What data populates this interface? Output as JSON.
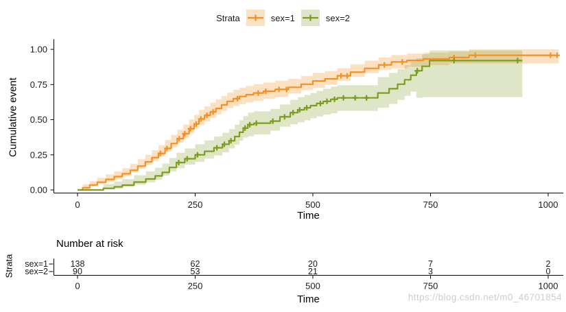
{
  "watermark": {
    "text": "https://blog.csdn.net/m0_46701854",
    "color": "#cdcdcd"
  },
  "chart_data": {
    "type": "line",
    "subtype": "kaplan-meier-cumulative-event-step",
    "title": "",
    "xlabel": "Time",
    "ylabel": "Cumulative event",
    "xlim": [
      0,
      1050
    ],
    "ylim": [
      0,
      1.0
    ],
    "grid": false,
    "x_ticks": {
      "values": [
        0,
        250,
        500,
        750,
        1000
      ],
      "labels": [
        "0",
        "250",
        "500",
        "750",
        "1000"
      ]
    },
    "y_ticks": {
      "values": [
        0,
        0.25,
        0.5,
        0.75,
        1.0
      ],
      "labels": [
        "0.00",
        "0.25",
        "0.50",
        "0.75",
        "1.00"
      ]
    },
    "legend": {
      "title": "Strata",
      "position": "top",
      "entries": [
        {
          "label": "sex=1",
          "color": "#F59122",
          "band_color": "rgba(245,145,35,0.28)"
        },
        {
          "label": "sex=2",
          "color": "#7C9D1E",
          "band_color": "rgba(124,157,30,0.25)"
        }
      ]
    },
    "series": [
      {
        "name": "sex=1",
        "color": "#F59122",
        "band_color": "rgba(245,145,35,0.28)",
        "steps": [
          [
            0,
            0,
            0,
            0.004
          ],
          [
            11,
            0.015,
            0.003,
            0.04
          ],
          [
            26,
            0.035,
            0.012,
            0.062
          ],
          [
            42,
            0.055,
            0.027,
            0.087
          ],
          [
            60,
            0.075,
            0.044,
            0.11
          ],
          [
            78,
            0.095,
            0.06,
            0.132
          ],
          [
            95,
            0.115,
            0.077,
            0.155
          ],
          [
            112,
            0.14,
            0.098,
            0.185
          ],
          [
            128,
            0.17,
            0.124,
            0.218
          ],
          [
            144,
            0.2,
            0.152,
            0.25
          ],
          [
            158,
            0.23,
            0.178,
            0.283
          ],
          [
            172,
            0.26,
            0.205,
            0.318
          ],
          [
            186,
            0.295,
            0.237,
            0.355
          ],
          [
            199,
            0.33,
            0.27,
            0.392
          ],
          [
            212,
            0.365,
            0.303,
            0.429
          ],
          [
            225,
            0.4,
            0.336,
            0.465
          ],
          [
            237,
            0.435,
            0.37,
            0.5
          ],
          [
            248,
            0.47,
            0.404,
            0.535
          ],
          [
            258,
            0.505,
            0.438,
            0.57
          ],
          [
            270,
            0.53,
            0.463,
            0.595
          ],
          [
            282,
            0.555,
            0.488,
            0.62
          ],
          [
            294,
            0.58,
            0.512,
            0.645
          ],
          [
            306,
            0.605,
            0.537,
            0.668
          ],
          [
            318,
            0.63,
            0.562,
            0.692
          ],
          [
            331,
            0.65,
            0.582,
            0.712
          ],
          [
            344,
            0.665,
            0.597,
            0.727
          ],
          [
            358,
            0.678,
            0.61,
            0.74
          ],
          [
            374,
            0.69,
            0.622,
            0.752
          ],
          [
            395,
            0.702,
            0.634,
            0.764
          ],
          [
            420,
            0.715,
            0.648,
            0.776
          ],
          [
            448,
            0.73,
            0.663,
            0.79
          ],
          [
            475,
            0.752,
            0.686,
            0.81
          ],
          [
            500,
            0.775,
            0.71,
            0.832
          ],
          [
            526,
            0.79,
            0.726,
            0.846
          ],
          [
            552,
            0.812,
            0.748,
            0.866
          ],
          [
            580,
            0.838,
            0.775,
            0.894
          ],
          [
            610,
            0.865,
            0.804,
            0.92
          ],
          [
            640,
            0.89,
            0.831,
            0.942
          ],
          [
            667,
            0.91,
            0.853,
            0.96
          ],
          [
            700,
            0.922,
            0.865,
            0.97
          ],
          [
            735,
            0.932,
            0.876,
            0.977
          ],
          [
            790,
            0.942,
            0.888,
            0.985
          ],
          [
            832,
            0.958,
            0.9,
            1.0
          ],
          [
            1022,
            0.958,
            0.9,
            1.0
          ]
        ],
        "censors": [
          [
            176,
            0.26
          ],
          [
            190,
            0.295
          ],
          [
            216,
            0.365
          ],
          [
            228,
            0.4
          ],
          [
            240,
            0.435
          ],
          [
            252,
            0.47
          ],
          [
            262,
            0.505
          ],
          [
            275,
            0.53
          ],
          [
            288,
            0.555
          ],
          [
            340,
            0.65
          ],
          [
            384,
            0.69
          ],
          [
            400,
            0.702
          ],
          [
            428,
            0.715
          ],
          [
            444,
            0.715
          ],
          [
            560,
            0.812
          ],
          [
            573,
            0.812
          ],
          [
            652,
            0.89
          ],
          [
            690,
            0.91
          ],
          [
            800,
            0.942
          ],
          [
            845,
            0.958
          ],
          [
            1005,
            0.958
          ],
          [
            1019,
            0.958
          ]
        ]
      },
      {
        "name": "sex=2",
        "color": "#7C9D1E",
        "band_color": "rgba(124,157,30,0.25)",
        "steps": [
          [
            0,
            0,
            0,
            0.004
          ],
          [
            55,
            0.011,
            0.001,
            0.042
          ],
          [
            78,
            0.022,
            0.005,
            0.06
          ],
          [
            95,
            0.034,
            0.01,
            0.077
          ],
          [
            120,
            0.056,
            0.022,
            0.105
          ],
          [
            145,
            0.078,
            0.038,
            0.132
          ],
          [
            165,
            0.1,
            0.054,
            0.158
          ],
          [
            180,
            0.125,
            0.073,
            0.188
          ],
          [
            195,
            0.16,
            0.102,
            0.227
          ],
          [
            210,
            0.195,
            0.132,
            0.265
          ],
          [
            228,
            0.222,
            0.155,
            0.295
          ],
          [
            250,
            0.25,
            0.18,
            0.325
          ],
          [
            270,
            0.275,
            0.2,
            0.352
          ],
          [
            290,
            0.3,
            0.223,
            0.38
          ],
          [
            308,
            0.325,
            0.245,
            0.406
          ],
          [
            322,
            0.35,
            0.268,
            0.432
          ],
          [
            334,
            0.38,
            0.295,
            0.464
          ],
          [
            344,
            0.41,
            0.322,
            0.495
          ],
          [
            352,
            0.44,
            0.35,
            0.525
          ],
          [
            362,
            0.465,
            0.372,
            0.55
          ],
          [
            375,
            0.475,
            0.382,
            0.56
          ],
          [
            410,
            0.49,
            0.395,
            0.576
          ],
          [
            430,
            0.52,
            0.422,
            0.608
          ],
          [
            452,
            0.55,
            0.45,
            0.64
          ],
          [
            468,
            0.57,
            0.468,
            0.66
          ],
          [
            482,
            0.585,
            0.482,
            0.675
          ],
          [
            495,
            0.6,
            0.495,
            0.69
          ],
          [
            508,
            0.615,
            0.51,
            0.705
          ],
          [
            522,
            0.63,
            0.523,
            0.72
          ],
          [
            538,
            0.645,
            0.536,
            0.735
          ],
          [
            552,
            0.655,
            0.545,
            0.745
          ],
          [
            638,
            0.69,
            0.562,
            0.802
          ],
          [
            662,
            0.72,
            0.585,
            0.832
          ],
          [
            680,
            0.752,
            0.612,
            0.86
          ],
          [
            695,
            0.784,
            0.64,
            0.888
          ],
          [
            708,
            0.816,
            0.67,
            0.914
          ],
          [
            720,
            0.848,
            0.7,
            0.938
          ],
          [
            732,
            0.88,
            0.655,
            0.966
          ],
          [
            748,
            0.92,
            0.66,
            0.992
          ],
          [
            945,
            0.92,
            0.66,
            0.992
          ]
        ],
        "censors": [
          [
            215,
            0.195
          ],
          [
            233,
            0.222
          ],
          [
            255,
            0.25
          ],
          [
            296,
            0.3
          ],
          [
            312,
            0.325
          ],
          [
            326,
            0.35
          ],
          [
            356,
            0.44
          ],
          [
            366,
            0.465
          ],
          [
            380,
            0.475
          ],
          [
            415,
            0.49
          ],
          [
            440,
            0.52
          ],
          [
            458,
            0.55
          ],
          [
            472,
            0.57
          ],
          [
            487,
            0.585
          ],
          [
            516,
            0.615
          ],
          [
            530,
            0.63
          ],
          [
            546,
            0.645
          ],
          [
            565,
            0.655
          ],
          [
            590,
            0.655
          ],
          [
            614,
            0.655
          ],
          [
            722,
            0.848
          ],
          [
            800,
            0.92
          ],
          [
            935,
            0.92
          ]
        ]
      }
    ],
    "risk_table": {
      "title": "Number at risk",
      "axis_label": "Strata",
      "xlabel": "Time",
      "times": [
        0,
        250,
        500,
        750,
        1000
      ],
      "rows": [
        {
          "label": "sex=1",
          "color": "#F59122",
          "counts": [
            "138",
            "62",
            "20",
            "7",
            "2"
          ]
        },
        {
          "label": "sex=2",
          "color": "#7C9D1E",
          "counts": [
            "90",
            "53",
            "21",
            "3",
            "0"
          ]
        }
      ]
    },
    "axis_color": "#000000",
    "tick_label_color": "#1a1a1a"
  }
}
